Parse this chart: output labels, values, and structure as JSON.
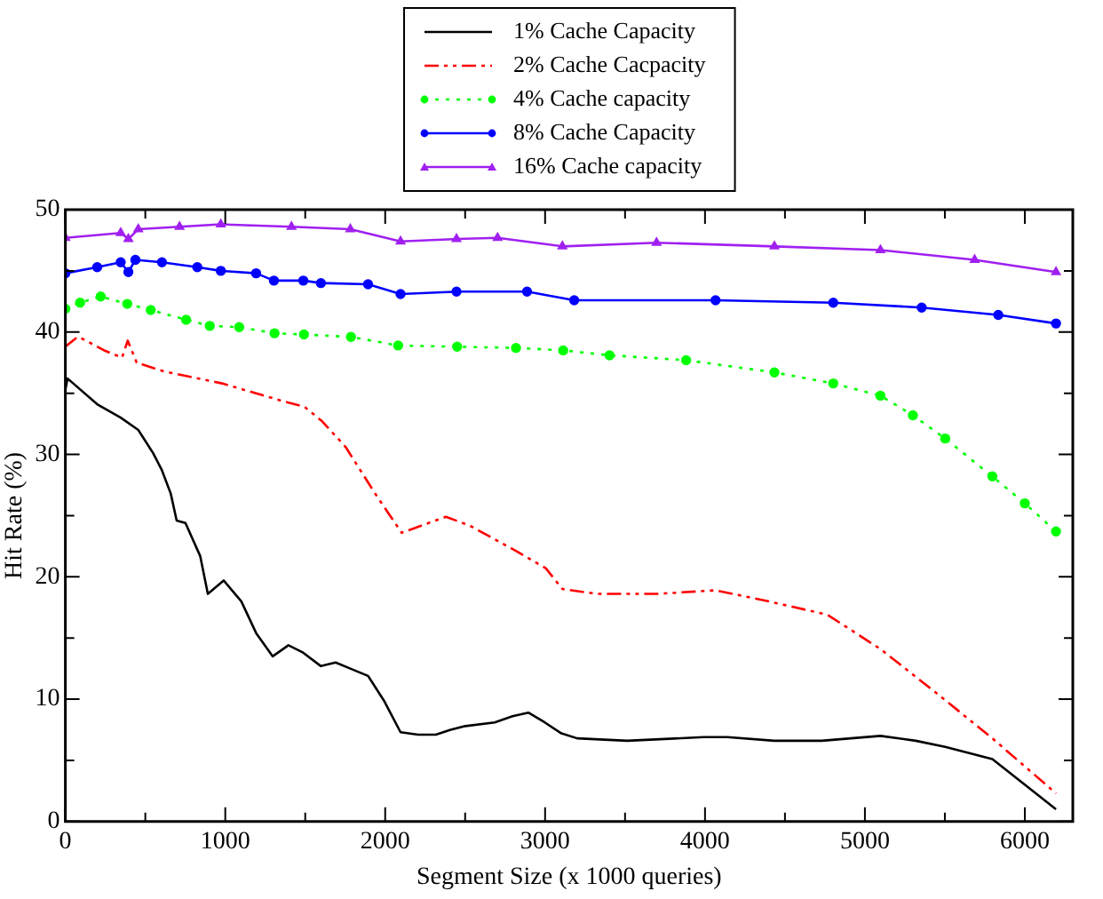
{
  "chart_data": {
    "type": "line",
    "xlabel": "Segment Size (x 1000 queries)",
    "ylabel": "Hit Rate (%)",
    "xlim": [
      0,
      6300
    ],
    "ylim": [
      0,
      50
    ],
    "xticks": [
      0,
      1000,
      2000,
      3000,
      4000,
      5000,
      6000
    ],
    "yticks": [
      0,
      10,
      20,
      30,
      40,
      50
    ],
    "grid": false,
    "legend": "top",
    "series": [
      {
        "name": "1% Cache Capacity",
        "color": "#000000",
        "marker": "none",
        "line_style": "solid",
        "x": [
          0,
          14,
          199,
          346,
          456,
          549,
          604,
          659,
          696,
          751,
          843,
          891,
          990,
          1100,
          1193,
          1296,
          1395,
          1487,
          1598,
          1690,
          1782,
          1893,
          1996,
          2096,
          2206,
          2317,
          2409,
          2501,
          2685,
          2796,
          2895,
          2998,
          3102,
          3200,
          3513,
          3992,
          4139,
          4434,
          4729,
          4913,
          5097,
          5318,
          5502,
          5797,
          6195
        ],
        "values": [
          35.3,
          36.2,
          34.1,
          33.0,
          32.0,
          30.1,
          28.7,
          26.8,
          24.6,
          24.4,
          21.7,
          18.6,
          19.7,
          18.0,
          15.4,
          13.5,
          14.4,
          13.8,
          12.7,
          13.0,
          12.5,
          11.9,
          9.8,
          7.3,
          7.1,
          7.1,
          7.5,
          7.8,
          8.1,
          8.6,
          8.9,
          8.1,
          7.2,
          6.8,
          6.6,
          6.9,
          6.9,
          6.6,
          6.6,
          6.8,
          7.0,
          6.6,
          6.1,
          5.1,
          1.0
        ]
      },
      {
        "name": "2% Cache Cacpacity",
        "color": "#ff0000",
        "marker": "none",
        "line_style": "dashdot",
        "x": [
          0,
          77,
          114,
          243,
          354,
          390,
          446,
          612,
          796,
          980,
          1164,
          1348,
          1495,
          1606,
          1753,
          1937,
          2103,
          2379,
          2526,
          2820,
          3004,
          3108,
          3329,
          3697,
          4066,
          4360,
          4765,
          5097,
          5466,
          5797,
          6195
        ],
        "values": [
          38.8,
          39.6,
          39.4,
          38.5,
          37.9,
          39.3,
          37.5,
          36.8,
          36.3,
          35.8,
          35.1,
          34.4,
          33.9,
          32.7,
          30.6,
          26.8,
          23.6,
          24.9,
          24.2,
          22.1,
          20.7,
          19.0,
          18.6,
          18.6,
          18.9,
          18.1,
          16.9,
          14.1,
          10.3,
          6.8,
          2.3
        ]
      },
      {
        "name": "4% Cache capacity",
        "color": "#00ff00",
        "marker": "circle",
        "line_style": "dotted",
        "x": [
          0,
          92,
          221,
          387,
          534,
          755,
          903,
          1087,
          1308,
          1492,
          1786,
          2081,
          2450,
          2818,
          3113,
          3403,
          3882,
          4434,
          4802,
          5097,
          5300,
          5502,
          5797,
          6000,
          6195
        ],
        "values": [
          41.9,
          42.4,
          42.9,
          42.3,
          41.8,
          41.0,
          40.5,
          40.4,
          39.9,
          39.8,
          39.6,
          38.9,
          38.8,
          38.7,
          38.5,
          38.1,
          37.7,
          36.7,
          35.8,
          34.8,
          33.2,
          31.3,
          28.2,
          26.0,
          23.7
        ]
      },
      {
        "name": "8% Cache Capacity",
        "color": "#0000ff",
        "marker": "circle",
        "line_style": "solid",
        "x": [
          0,
          199,
          346,
          394,
          438,
          604,
          825,
          972,
          1193,
          1304,
          1488,
          1598,
          1893,
          2096,
          2446,
          2887,
          3182,
          4066,
          4802,
          5355,
          5834,
          6195
        ],
        "values": [
          44.8,
          45.3,
          45.7,
          44.9,
          45.9,
          45.7,
          45.3,
          45.0,
          44.8,
          44.2,
          44.2,
          44.0,
          43.9,
          43.1,
          43.3,
          43.3,
          42.6,
          42.6,
          42.4,
          42.0,
          41.4,
          40.7
        ]
      },
      {
        "name": "16% Cache capacity",
        "color": "#a020f0",
        "marker": "triangle",
        "line_style": "solid",
        "x": [
          0,
          346,
          394,
          456,
          714,
          972,
          1414,
          1782,
          2096,
          2446,
          2703,
          3108,
          3697,
          4434,
          5097,
          5686,
          6195
        ],
        "values": [
          47.7,
          48.1,
          47.6,
          48.4,
          48.6,
          48.8,
          48.6,
          48.4,
          47.4,
          47.6,
          47.7,
          47.0,
          47.3,
          47.0,
          46.7,
          45.9,
          44.9
        ]
      }
    ]
  }
}
